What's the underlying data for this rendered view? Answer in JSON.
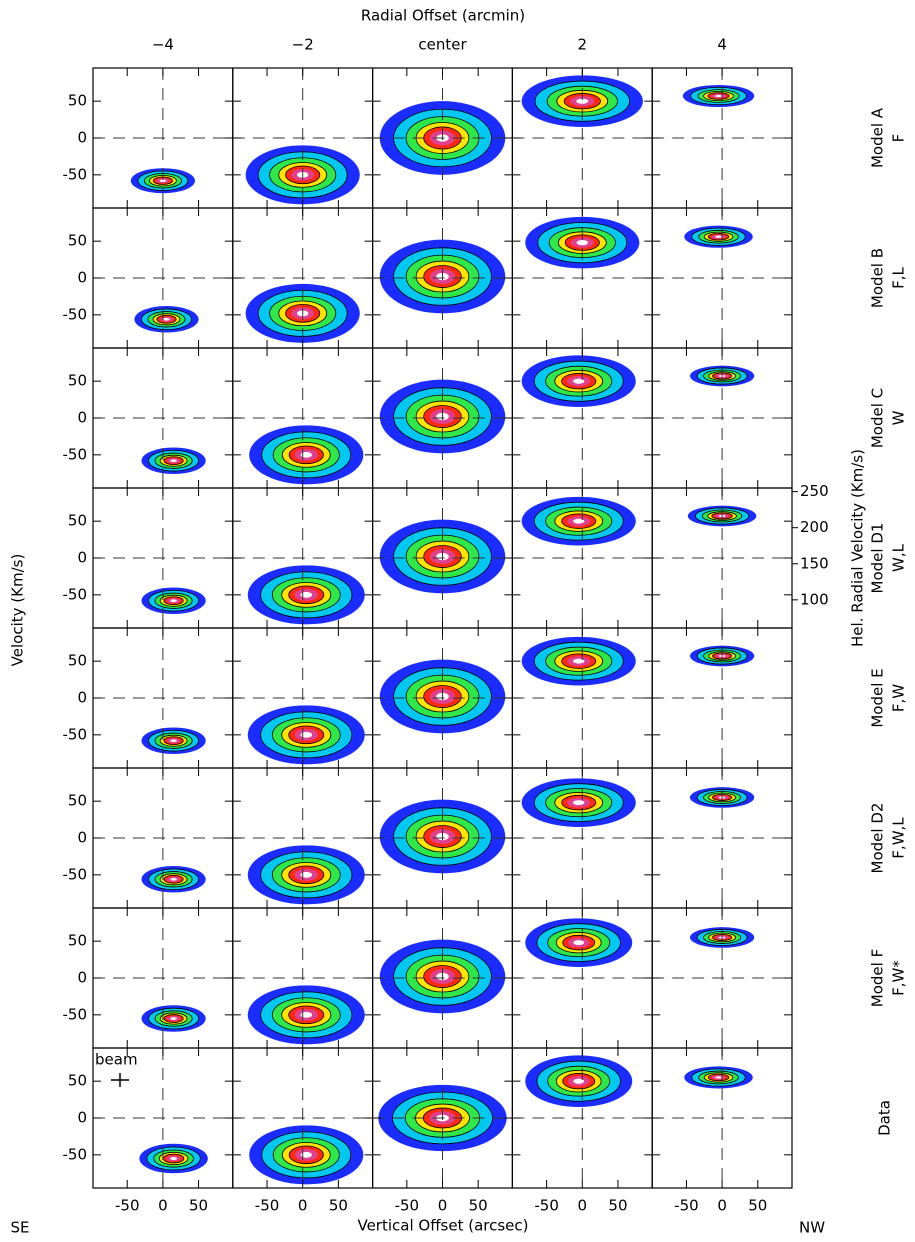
{
  "chart_data": {
    "type": "pv-grid",
    "title": "Radial Offset (arcmin)",
    "xlabel": "Vertical Offset (arcsec)",
    "ylabel": "Velocity (Km/s)",
    "y2label": "Hel. Radial Velocity (Km/s)",
    "corner_labels": [
      "SE",
      "NW"
    ],
    "beam_label": "beam",
    "columns": [
      "−4",
      "−2",
      "center",
      "2",
      "4"
    ],
    "rows": [
      {
        "name": "Model A",
        "code": "F"
      },
      {
        "name": "Model B",
        "code": "F,L"
      },
      {
        "name": "Model C",
        "code": "W"
      },
      {
        "name": "Model D1",
        "code": "W,L"
      },
      {
        "name": "Model E",
        "code": "F,W"
      },
      {
        "name": "Model D2",
        "code": "F,W,L"
      },
      {
        "name": "Model F",
        "code": "F,W*"
      },
      {
        "name": "Data"
      }
    ],
    "xlim": [
      -98,
      98
    ],
    "ylim": [
      -95,
      95
    ],
    "xticks": [
      -50,
      0,
      50
    ],
    "yticks": [
      -50,
      0,
      50
    ],
    "y2lim": [
      61,
      255
    ],
    "y2ticks": [
      100,
      150,
      200,
      250
    ],
    "y2_row": 3,
    "colormap": [
      "#1a2cff",
      "#00c8f0",
      "#2ee84a",
      "#ffe400",
      "#ff2a10",
      "#e04090",
      "#ffffff"
    ],
    "panels": [
      [
        {
          "x": 0,
          "v": -58,
          "dx": 45,
          "dv": 17
        },
        {
          "x": 0,
          "v": -50,
          "dx": 80,
          "dv": 40
        },
        {
          "x": 0,
          "v": 0,
          "dx": 88,
          "dv": 50
        },
        {
          "x": 0,
          "v": 50,
          "dx": 85,
          "dv": 35
        },
        {
          "x": -5,
          "v": 57,
          "dx": 50,
          "dv": 15
        }
      ],
      [
        {
          "x": 5,
          "v": -56,
          "dx": 45,
          "dv": 18
        },
        {
          "x": 0,
          "v": -48,
          "dx": 80,
          "dv": 40
        },
        {
          "x": 0,
          "v": 2,
          "dx": 88,
          "dv": 50
        },
        {
          "x": 0,
          "v": 48,
          "dx": 80,
          "dv": 35
        },
        {
          "x": -5,
          "v": 56,
          "dx": 48,
          "dv": 15
        }
      ],
      [
        {
          "x": 15,
          "v": -58,
          "dx": 45,
          "dv": 18
        },
        {
          "x": 5,
          "v": -50,
          "dx": 80,
          "dv": 40
        },
        {
          "x": 0,
          "v": 2,
          "dx": 88,
          "dv": 50
        },
        {
          "x": -5,
          "v": 50,
          "dx": 80,
          "dv": 35
        },
        {
          "x": 0,
          "v": 57,
          "dx": 45,
          "dv": 14
        }
      ],
      [
        {
          "x": 15,
          "v": -58,
          "dx": 45,
          "dv": 18
        },
        {
          "x": 5,
          "v": -50,
          "dx": 82,
          "dv": 40
        },
        {
          "x": 0,
          "v": 2,
          "dx": 88,
          "dv": 50
        },
        {
          "x": -5,
          "v": 50,
          "dx": 80,
          "dv": 33
        },
        {
          "x": 0,
          "v": 57,
          "dx": 48,
          "dv": 14
        }
      ],
      [
        {
          "x": 15,
          "v": -58,
          "dx": 45,
          "dv": 18
        },
        {
          "x": 5,
          "v": -50,
          "dx": 82,
          "dv": 40
        },
        {
          "x": 0,
          "v": 2,
          "dx": 88,
          "dv": 50
        },
        {
          "x": -5,
          "v": 50,
          "dx": 80,
          "dv": 33
        },
        {
          "x": 0,
          "v": 57,
          "dx": 45,
          "dv": 14
        }
      ],
      [
        {
          "x": 15,
          "v": -56,
          "dx": 45,
          "dv": 18
        },
        {
          "x": 5,
          "v": -50,
          "dx": 82,
          "dv": 40
        },
        {
          "x": 0,
          "v": 2,
          "dx": 88,
          "dv": 50
        },
        {
          "x": -5,
          "v": 48,
          "dx": 80,
          "dv": 33
        },
        {
          "x": 0,
          "v": 55,
          "dx": 45,
          "dv": 14
        }
      ],
      [
        {
          "x": 15,
          "v": -55,
          "dx": 45,
          "dv": 18
        },
        {
          "x": 5,
          "v": -50,
          "dx": 82,
          "dv": 40
        },
        {
          "x": 0,
          "v": 2,
          "dx": 88,
          "dv": 50
        },
        {
          "x": -5,
          "v": 48,
          "dx": 75,
          "dv": 33
        },
        {
          "x": 0,
          "v": 55,
          "dx": 45,
          "dv": 14
        }
      ],
      [
        {
          "x": 15,
          "v": -55,
          "dx": 48,
          "dv": 20
        },
        {
          "x": 5,
          "v": -50,
          "dx": 80,
          "dv": 40
        },
        {
          "x": 0,
          "v": 0,
          "dx": 90,
          "dv": 45
        },
        {
          "x": -5,
          "v": 50,
          "dx": 75,
          "dv": 35
        },
        {
          "x": -5,
          "v": 55,
          "dx": 48,
          "dv": 15
        }
      ]
    ]
  }
}
